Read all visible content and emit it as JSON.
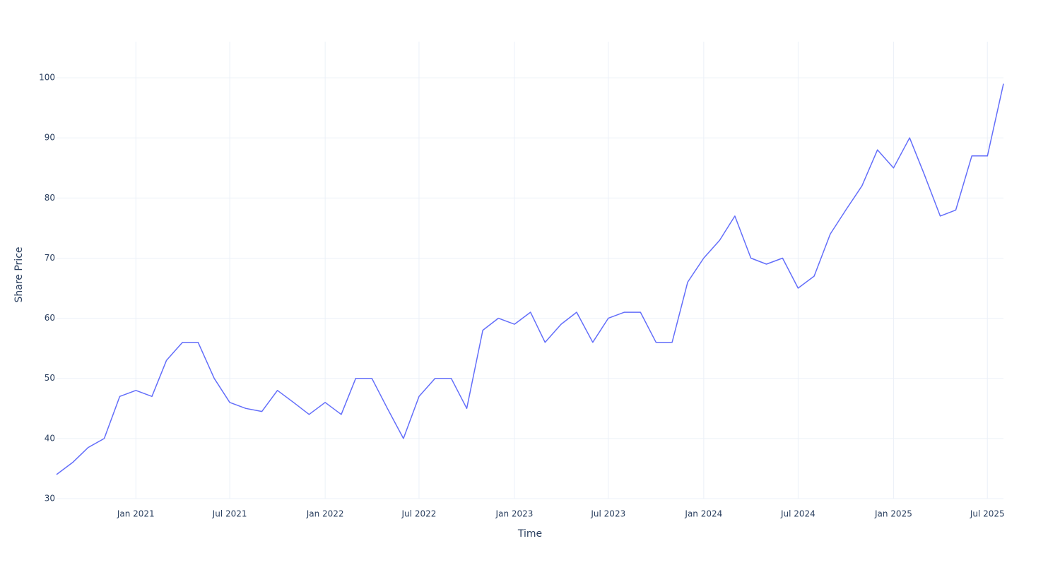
{
  "chart_data": {
    "type": "line",
    "x_label": "Time",
    "y_label": "Share Price",
    "color": "#636efa",
    "grid": true,
    "x": [
      "2020-08",
      "2020-09",
      "2020-10",
      "2020-11",
      "2020-12",
      "2021-01",
      "2021-02",
      "2021-03",
      "2021-04",
      "2021-05",
      "2021-06",
      "2021-07",
      "2021-08",
      "2021-09",
      "2021-10",
      "2021-11",
      "2021-12",
      "2022-01",
      "2022-02",
      "2022-03",
      "2022-04",
      "2022-05",
      "2022-06",
      "2022-07",
      "2022-08",
      "2022-09",
      "2022-10",
      "2022-11",
      "2022-12",
      "2023-01",
      "2023-02",
      "2023-03",
      "2023-04",
      "2023-05",
      "2023-06",
      "2023-07",
      "2023-08",
      "2023-09",
      "2023-10",
      "2023-11",
      "2023-12",
      "2024-01",
      "2024-02",
      "2024-03",
      "2024-04",
      "2024-05",
      "2024-06",
      "2024-07",
      "2024-08",
      "2024-09",
      "2024-10",
      "2024-11",
      "2024-12",
      "2025-01",
      "2025-02",
      "2025-03",
      "2025-04",
      "2025-05",
      "2025-06",
      "2025-07",
      "2025-08"
    ],
    "values": [
      34,
      36,
      38.5,
      40,
      47,
      48,
      47,
      53,
      56,
      56,
      50,
      46,
      45,
      44.5,
      48,
      46,
      44,
      46,
      44,
      50,
      50,
      45,
      40,
      47,
      50,
      50,
      45,
      58,
      60,
      59,
      61,
      56,
      59,
      61,
      56,
      60,
      61,
      61,
      56,
      56,
      66,
      70,
      73,
      77,
      70,
      69,
      70,
      65,
      67,
      74,
      78,
      82,
      88,
      85,
      90,
      84,
      77,
      78,
      87,
      87,
      99
    ],
    "xlim": [
      "2020-08",
      "2025-08"
    ],
    "xticks": [
      {
        "value": "2021-01",
        "label": "Jan 2021"
      },
      {
        "value": "2021-07",
        "label": "Jul 2021"
      },
      {
        "value": "2022-01",
        "label": "Jan 2022"
      },
      {
        "value": "2022-07",
        "label": "Jul 2022"
      },
      {
        "value": "2023-01",
        "label": "Jan 2023"
      },
      {
        "value": "2023-07",
        "label": "Jul 2023"
      },
      {
        "value": "2024-01",
        "label": "Jan 2024"
      },
      {
        "value": "2024-07",
        "label": "Jul 2024"
      },
      {
        "value": "2025-01",
        "label": "Jan 2025"
      },
      {
        "value": "2025-07",
        "label": "Jul 2025"
      }
    ],
    "ylim": [
      30,
      106
    ],
    "yticks": [
      30,
      40,
      50,
      60,
      70,
      80,
      90,
      100
    ]
  }
}
